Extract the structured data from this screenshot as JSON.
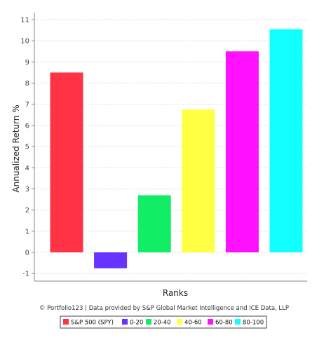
{
  "chart_data": {
    "type": "bar",
    "categories": [
      "S&P 500 (SPY)",
      "0-20",
      "20-40",
      "40-60",
      "60-80",
      "80-100"
    ],
    "values": [
      8.5,
      -0.75,
      2.7,
      6.75,
      9.5,
      10.55
    ],
    "colors": [
      "#ff3344",
      "#6633ff",
      "#11ee66",
      "#ffff44",
      "#ff11ff",
      "#11ffff"
    ],
    "xlabel": "Ranks",
    "ylabel": "Annualized Return %",
    "ylim": [
      -1.3,
      11.2
    ],
    "yticks": [
      -1,
      0,
      1,
      2,
      3,
      4,
      5,
      6,
      7,
      8,
      9,
      10,
      11
    ],
    "grid": true,
    "legend": "bottom"
  },
  "credit": "© Portfolio123 | Data provided by S&P Global Market Intelligence and ICE Data, LLP"
}
